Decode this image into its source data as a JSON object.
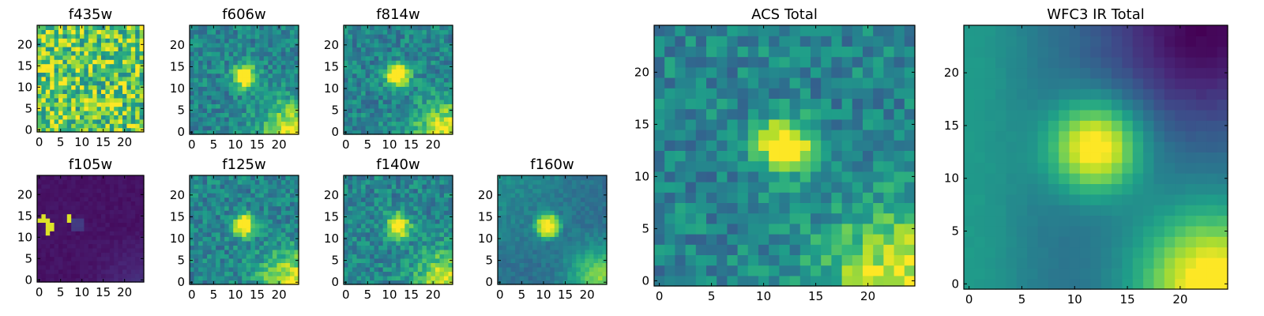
{
  "chart_data": [
    {
      "type": "heatmap",
      "title": "f435w",
      "pattern": "noise",
      "peak": "none",
      "xticks": [
        "0",
        "5",
        "10",
        "15",
        "20"
      ],
      "yticks": [
        "0",
        "5",
        "10",
        "15",
        "20"
      ],
      "xlim": [
        0,
        24
      ],
      "ylim": [
        0,
        24
      ],
      "grid": false
    },
    {
      "type": "heatmap",
      "title": "f606w",
      "pattern": "source",
      "peak": [
        12,
        13
      ],
      "xticks": [
        "0",
        "5",
        "10",
        "15",
        "20"
      ],
      "yticks": [
        "0",
        "5",
        "10",
        "15",
        "20"
      ],
      "xlim": [
        0,
        24
      ],
      "ylim": [
        0,
        24
      ],
      "grid": false
    },
    {
      "type": "heatmap",
      "title": "f814w",
      "pattern": "source",
      "peak": [
        12,
        13
      ],
      "xticks": [
        "0",
        "5",
        "10",
        "15",
        "20"
      ],
      "yticks": [
        "0",
        "5",
        "10",
        "15",
        "20"
      ],
      "xlim": [
        0,
        24
      ],
      "ylim": [
        0,
        24
      ],
      "grid": false
    },
    {
      "type": "heatmap",
      "title": "f105w",
      "pattern": "dark",
      "peak": [
        2,
        13
      ],
      "xticks": [
        "0",
        "5",
        "10",
        "15",
        "20"
      ],
      "yticks": [
        "0",
        "5",
        "10",
        "15",
        "20"
      ],
      "xlim": [
        0,
        24
      ],
      "ylim": [
        0,
        24
      ],
      "grid": false
    },
    {
      "type": "heatmap",
      "title": "f125w",
      "pattern": "source",
      "peak": [
        12,
        13
      ],
      "xticks": [
        "0",
        "5",
        "10",
        "15",
        "20"
      ],
      "yticks": [
        "0",
        "5",
        "10",
        "15",
        "20"
      ],
      "xlim": [
        0,
        24
      ],
      "ylim": [
        0,
        24
      ],
      "grid": false
    },
    {
      "type": "heatmap",
      "title": "f140w",
      "pattern": "source",
      "peak": [
        12,
        13
      ],
      "xticks": [
        "0",
        "5",
        "10",
        "15",
        "20"
      ],
      "yticks": [
        "0",
        "5",
        "10",
        "15",
        "20"
      ],
      "xlim": [
        0,
        24
      ],
      "ylim": [
        0,
        24
      ],
      "grid": false
    },
    {
      "type": "heatmap",
      "title": "f160w",
      "pattern": "ring",
      "peak": [
        11,
        13
      ],
      "xticks": [
        "0",
        "5",
        "10",
        "15",
        "20"
      ],
      "yticks": [
        "0",
        "5",
        "10",
        "15",
        "20"
      ],
      "xlim": [
        0,
        24
      ],
      "ylim": [
        0,
        24
      ],
      "grid": false
    },
    {
      "type": "heatmap",
      "title": "ACS Total",
      "pattern": "source",
      "peak": [
        12,
        13
      ],
      "xticks": [
        "0",
        "5",
        "10",
        "15",
        "20"
      ],
      "yticks": [
        "0",
        "5",
        "10",
        "15",
        "20"
      ],
      "xlim": [
        0,
        24
      ],
      "ylim": [
        0,
        24
      ],
      "grid": false
    },
    {
      "type": "heatmap",
      "title": "WFC3 IR Total",
      "pattern": "smooth",
      "peak": [
        12,
        13
      ],
      "xticks": [
        "0",
        "5",
        "10",
        "15",
        "20"
      ],
      "yticks": [
        "0",
        "5",
        "10",
        "15",
        "20"
      ],
      "xlim": [
        0,
        24
      ],
      "ylim": [
        0,
        24
      ],
      "grid": false
    }
  ],
  "colormap": [
    "#440154",
    "#482878",
    "#3e4a89",
    "#31688e",
    "#26828e",
    "#1f9e89",
    "#35b779",
    "#6ece58",
    "#b5de2b",
    "#fde725"
  ]
}
